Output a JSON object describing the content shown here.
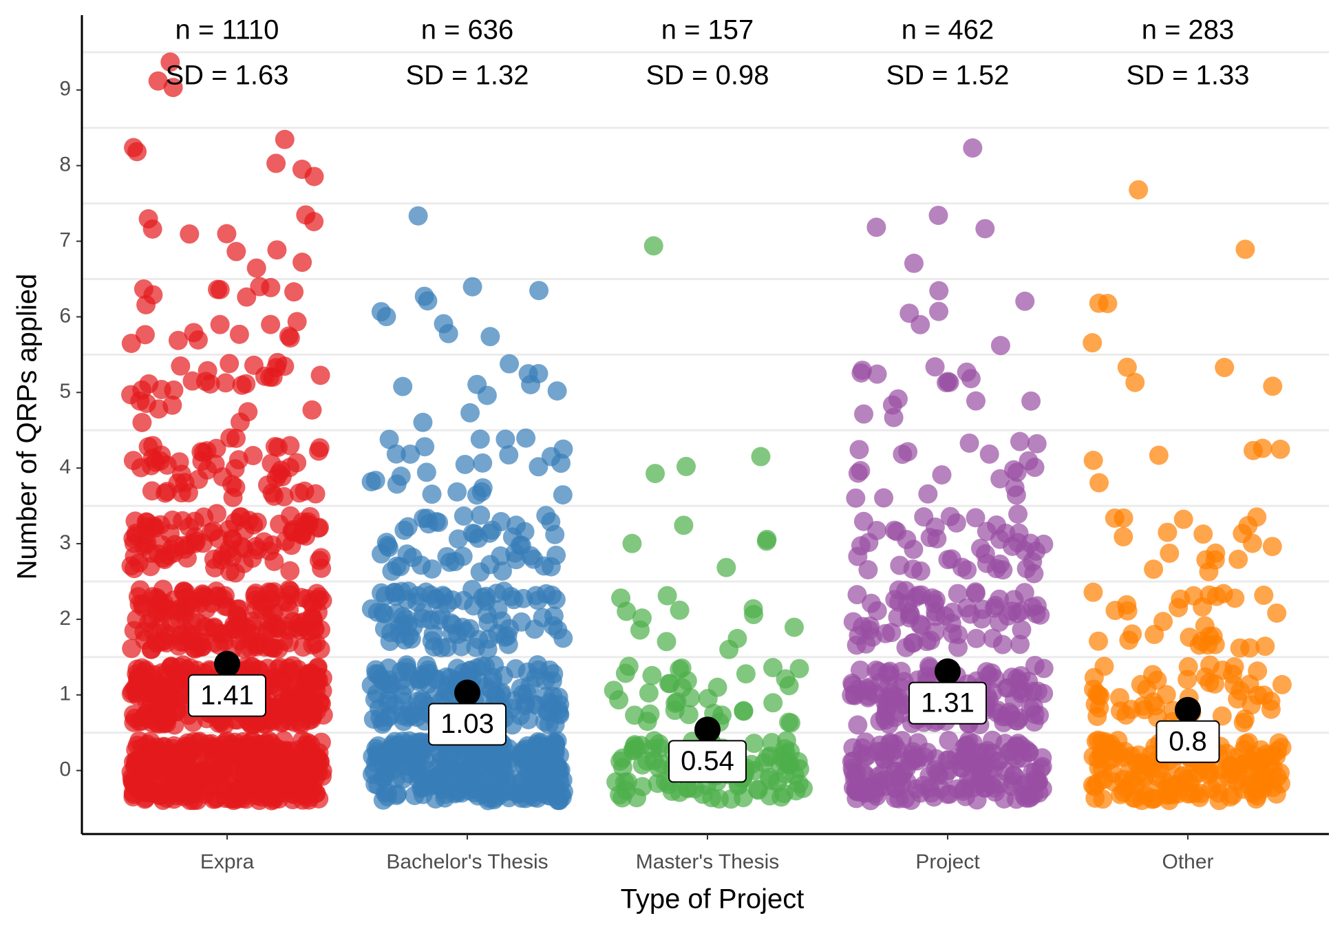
{
  "chart_data": {
    "type": "strip",
    "xlabel": "Type of Project",
    "ylabel": "Number of QRPs applied",
    "categories": [
      "Expra",
      "Bachelor's Thesis",
      "Master's Thesis",
      "Project",
      "Other"
    ],
    "colors": [
      "#e41a1c",
      "#377eb8",
      "#4daf4a",
      "#984ea3",
      "#ff7f00"
    ],
    "levels": [
      0,
      1,
      2,
      3,
      4,
      5,
      6,
      7,
      8,
      9
    ],
    "counts": [
      [
        406,
        300,
        180,
        100,
        55,
        30,
        20,
        10,
        6,
        3
      ],
      [
        301,
        150,
        90,
        50,
        25,
        10,
        9,
        1,
        0,
        0
      ],
      [
        101,
        35,
        12,
        5,
        3,
        0,
        0,
        1,
        0,
        0
      ],
      [
        181,
        120,
        70,
        45,
        20,
        15,
        6,
        4,
        1,
        0
      ],
      [
        170,
        50,
        30,
        18,
        6,
        4,
        3,
        1,
        1,
        0
      ]
    ],
    "means": [
      1.41,
      1.03,
      0.54,
      1.31,
      0.8
    ],
    "n_labels": [
      "n = 1110",
      "n = 636",
      "n = 157",
      "n = 462",
      "n = 283"
    ],
    "sd_labels": [
      "SD = 1.63",
      "SD = 1.32",
      "SD = 0.98",
      "SD = 1.52",
      "SD = 1.33"
    ],
    "ylim": [
      -0.84,
      9.99
    ],
    "yticks": [
      0,
      1,
      2,
      3,
      4,
      5,
      6,
      7,
      8,
      9
    ],
    "grid_lines": [
      0.5,
      1.5,
      2.5,
      3.5,
      4.5,
      5.5,
      6.5,
      7.5,
      8.5,
      9.5
    ]
  }
}
